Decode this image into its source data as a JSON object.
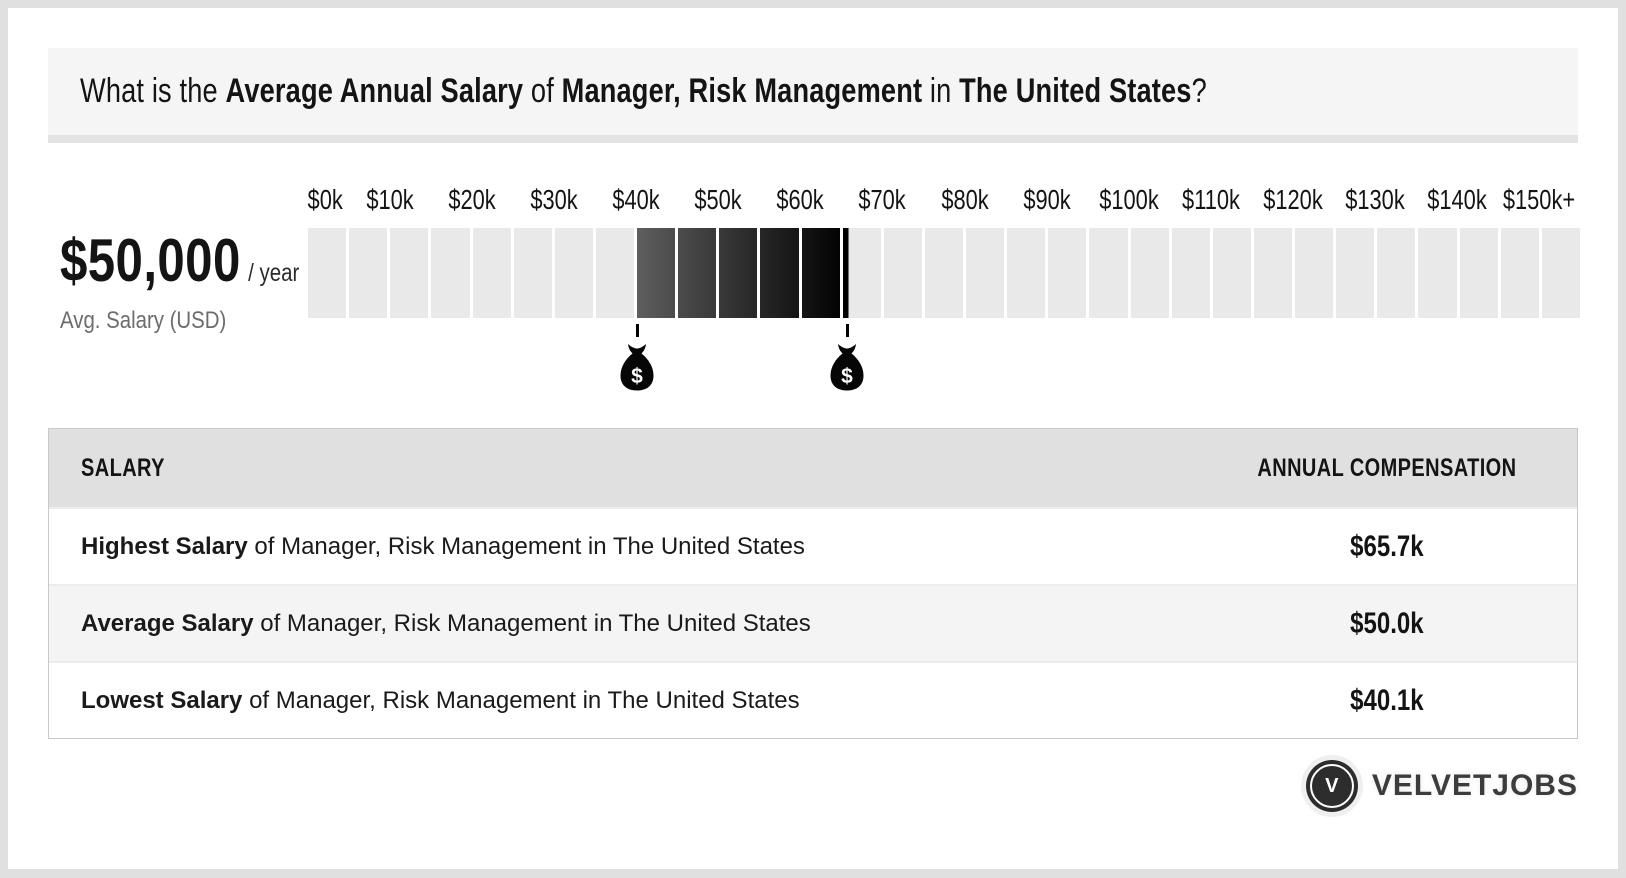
{
  "question": {
    "parts": [
      {
        "text": "What is the ",
        "bold": false
      },
      {
        "text": "Average Annual Salary",
        "bold": true
      },
      {
        "text": " of ",
        "bold": false
      },
      {
        "text": "Manager, Risk Management",
        "bold": true
      },
      {
        "text": " in ",
        "bold": false
      },
      {
        "text": "The United States",
        "bold": true
      },
      {
        "text": "?",
        "bold": false
      }
    ]
  },
  "summary": {
    "amount": "$50,000",
    "per": "/ year",
    "caption": "Avg. Salary (USD)"
  },
  "chart_data": {
    "type": "bar",
    "title": "Average annual salary range scale for Manager, Risk Management in The United States",
    "units": "USD per year",
    "axis_min": 0,
    "axis_max": 155000,
    "cell_step": 5000,
    "tick_interval": 10000,
    "tick_labels": [
      "$0k",
      "$10k",
      "$20k",
      "$30k",
      "$40k",
      "$50k",
      "$60k",
      "$70k",
      "$80k",
      "$90k",
      "$100k",
      "$110k",
      "$120k",
      "$130k",
      "$140k",
      "$150k+"
    ],
    "highlight": {
      "start": 40000,
      "end": 65700
    },
    "markers": [
      {
        "name": "lowest-salary",
        "icon": "money-bag-icon",
        "value": 40100
      },
      {
        "name": "highest-salary",
        "icon": "money-bag-icon",
        "value": 65700
      }
    ],
    "average_value": 50000,
    "grid": false,
    "legend": false
  },
  "table": {
    "headers": [
      "SALARY",
      "ANNUAL COMPENSATION"
    ],
    "rows": [
      {
        "bold": "Highest Salary",
        "rest": " of Manager, Risk Management in The United States",
        "value": "$65.7k"
      },
      {
        "bold": "Average Salary",
        "rest": " of Manager, Risk Management in The United States",
        "value": "$50.0k"
      },
      {
        "bold": "Lowest Salary",
        "rest": " of Manager, Risk Management in The United States",
        "value": "$40.1k"
      }
    ]
  },
  "logo": {
    "monogram": "V",
    "text": "VELVETJOBS"
  },
  "colors": {
    "page_frame": "#e0e0e0",
    "card": "#ffffff",
    "banner_bg": "#f5f5f5",
    "banner_shadow": "#e3e3e3",
    "cell_light": "#e9e9e9",
    "highlight_from": "#5e5e5e",
    "highlight_to": "#000000",
    "table_header_bg": "#e0e0e0",
    "row_alt_bg": "#f4f4f4",
    "row_divider": "#ececec",
    "table_border": "#c9c9c9",
    "text": "#141414",
    "muted_text": "#6c6c6c",
    "logo_color": "#3c3c3c"
  }
}
